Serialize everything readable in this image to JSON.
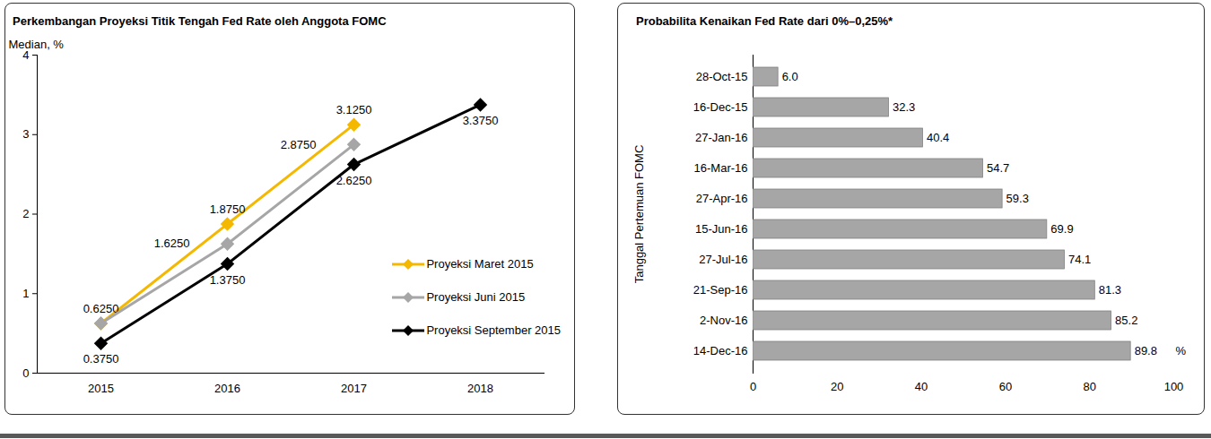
{
  "chart_data": [
    {
      "type": "line",
      "title": "Perkembangan Proyeksi Titik Tengah Fed Rate oleh Anggota FOMC",
      "y_label": "Median, %",
      "categories": [
        "2015",
        "2016",
        "2017",
        "2018"
      ],
      "series": [
        {
          "name": "Proyeksi Maret 2015",
          "color": "#f5b800",
          "values": [
            0.625,
            1.875,
            3.125,
            null
          ],
          "value_labels": [
            "0.6250",
            "1.8750",
            "3.1250",
            null
          ]
        },
        {
          "name": "Proyeksi Juni 2015",
          "color": "#a6a6a6",
          "values": [
            0.625,
            1.625,
            2.875,
            null
          ],
          "value_labels": [
            null,
            "1.6250",
            "2.8750",
            null
          ]
        },
        {
          "name": "Proyeksi September 2015",
          "color": "#000000",
          "values": [
            0.375,
            1.375,
            2.625,
            3.375
          ],
          "value_labels": [
            "0.3750",
            "1.3750",
            "2.6250",
            "3.3750"
          ]
        }
      ],
      "ylim": [
        0,
        4
      ],
      "yticks": [
        0,
        1,
        2,
        3,
        4
      ],
      "marker": "diamond",
      "legend": "lower right",
      "data_labels": true,
      "grid": false
    },
    {
      "type": "bar",
      "orientation": "horizontal",
      "title": "Probabilita Kenaikan Fed Rate dari 0%–0,25%*",
      "y_label": "Tanggal Pertemuan FOMC",
      "x_label": "%",
      "categories": [
        "28-Oct-15",
        "16-Dec-15",
        "27-Jan-16",
        "16-Mar-16",
        "27-Apr-16",
        "15-Jun-16",
        "27-Jul-16",
        "21-Sep-16",
        "2-Nov-16",
        "14-Dec-16"
      ],
      "values": [
        6.0,
        32.3,
        40.4,
        54.7,
        59.3,
        69.9,
        74.1,
        81.3,
        85.2,
        89.8
      ],
      "value_labels": [
        "6.0",
        "32.3",
        "40.4",
        "54.7",
        "59.3",
        "69.9",
        "74.1",
        "81.3",
        "85.2",
        "89.8"
      ],
      "color": "#a6a6a6",
      "xlim": [
        0,
        100
      ],
      "xticks": [
        0,
        20,
        40,
        60,
        80,
        100
      ],
      "data_labels": true,
      "grid": false
    }
  ]
}
